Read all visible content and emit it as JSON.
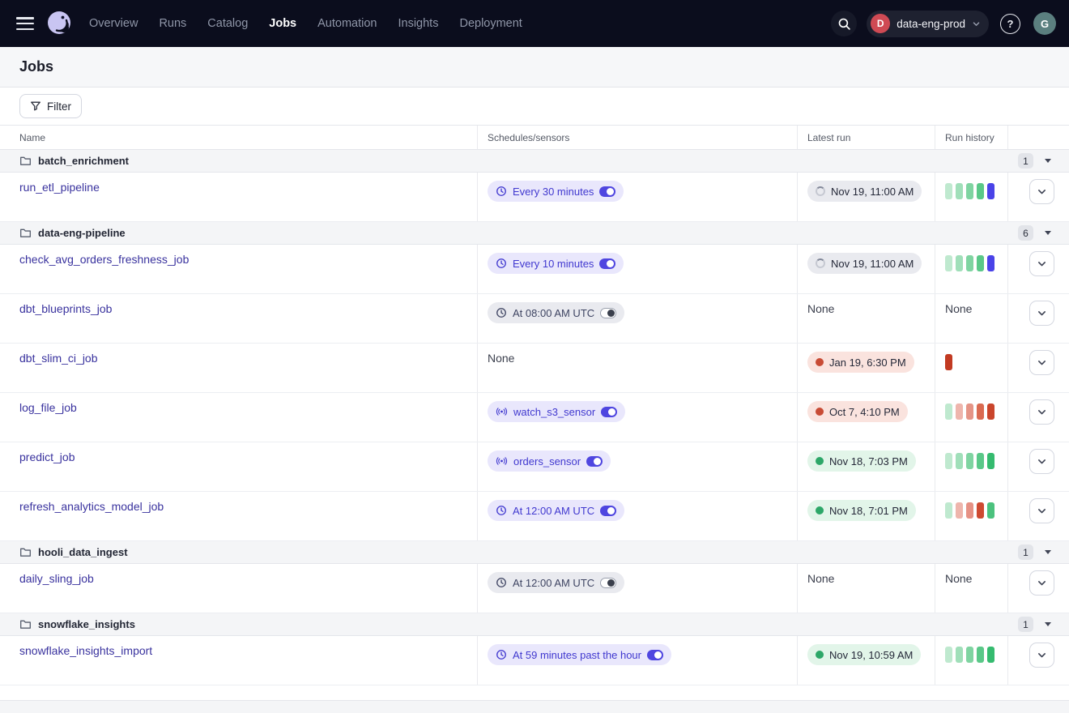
{
  "nav": {
    "items": [
      {
        "label": "Overview",
        "active": false
      },
      {
        "label": "Runs",
        "active": false
      },
      {
        "label": "Catalog",
        "active": false
      },
      {
        "label": "Jobs",
        "active": true
      },
      {
        "label": "Automation",
        "active": false
      },
      {
        "label": "Insights",
        "active": false
      },
      {
        "label": "Deployment",
        "active": false
      }
    ],
    "workspace": {
      "initial": "D",
      "label": "data-eng-prod"
    },
    "help_glyph": "?",
    "avatar_initial": "G"
  },
  "page": {
    "title": "Jobs"
  },
  "toolbar": {
    "filter_label": "Filter"
  },
  "table": {
    "columns": [
      "Name",
      "Schedules/sensors",
      "Latest run",
      "Run history",
      ""
    ],
    "none_label": "None",
    "groups": [
      {
        "name": "batch_enrichment",
        "count": "1",
        "jobs": [
          {
            "name": "run_etl_pipeline",
            "schedule": {
              "type": "schedule",
              "label": "Every 30 minutes",
              "enabled": true
            },
            "latest_run": {
              "type": "in_progress",
              "label": "Nov 19, 11:00 AM"
            },
            "run_history": {
              "type": "bars",
              "bars": [
                "#bfe9cf",
                "#a0dfb9",
                "#7fd4a1",
                "#5ac888",
                "#4a43e8"
              ]
            }
          }
        ]
      },
      {
        "name": "data-eng-pipeline",
        "count": "6",
        "jobs": [
          {
            "name": "check_avg_orders_freshness_job",
            "schedule": {
              "type": "schedule",
              "label": "Every 10 minutes",
              "enabled": true
            },
            "latest_run": {
              "type": "in_progress",
              "label": "Nov 19, 11:00 AM"
            },
            "run_history": {
              "type": "bars",
              "bars": [
                "#bfe9cf",
                "#a0dfb9",
                "#7fd4a1",
                "#5ac888",
                "#4a43e8"
              ]
            }
          },
          {
            "name": "dbt_blueprints_job",
            "schedule": {
              "type": "schedule",
              "label": "At 08:00 AM UTC",
              "enabled": false
            },
            "latest_run": {
              "type": "none"
            },
            "run_history": {
              "type": "none"
            }
          },
          {
            "name": "dbt_slim_ci_job",
            "schedule": {
              "type": "none"
            },
            "latest_run": {
              "type": "failure",
              "label": "Jan 19, 6:30 PM"
            },
            "run_history": {
              "type": "bars",
              "bars": [
                "#c23a22"
              ]
            }
          },
          {
            "name": "log_file_job",
            "schedule": {
              "type": "sensor",
              "label": "watch_s3_sensor",
              "enabled": true
            },
            "latest_run": {
              "type": "failure",
              "label": "Oct 7, 4:10 PM"
            },
            "run_history": {
              "type": "bars",
              "bars": [
                "#bfe9cf",
                "#eeb5ac",
                "#e59486",
                "#da6a51",
                "#ca452c"
              ]
            }
          },
          {
            "name": "predict_job",
            "schedule": {
              "type": "sensor",
              "label": "orders_sensor",
              "enabled": true
            },
            "latest_run": {
              "type": "success",
              "label": "Nov 18, 7:03 PM"
            },
            "run_history": {
              "type": "bars",
              "bars": [
                "#bfe9cf",
                "#a0dfb9",
                "#7fd4a1",
                "#5ac888",
                "#35bb6f"
              ]
            }
          },
          {
            "name": "refresh_analytics_model_job",
            "schedule": {
              "type": "schedule",
              "label": "At 12:00 AM UTC",
              "enabled": true
            },
            "latest_run": {
              "type": "success",
              "label": "Nov 18, 7:01 PM"
            },
            "run_history": {
              "type": "bars",
              "bars": [
                "#bfe9cf",
                "#eeb5ac",
                "#e69184",
                "#ce4a31",
                "#4cc27e"
              ]
            }
          }
        ]
      },
      {
        "name": "hooli_data_ingest",
        "count": "1",
        "jobs": [
          {
            "name": "daily_sling_job",
            "schedule": {
              "type": "schedule",
              "label": "At 12:00 AM UTC",
              "enabled": false
            },
            "latest_run": {
              "type": "none"
            },
            "run_history": {
              "type": "none"
            }
          }
        ]
      },
      {
        "name": "snowflake_insights",
        "count": "1",
        "jobs": [
          {
            "name": "snowflake_insights_import",
            "schedule": {
              "type": "schedule",
              "label": "At 59 minutes past the hour",
              "enabled": true
            },
            "latest_run": {
              "type": "success",
              "label": "Nov 19, 10:59 AM"
            },
            "run_history": {
              "type": "bars",
              "bars": [
                "#bfe9cf",
                "#a0dfb9",
                "#7fd4a1",
                "#5ac888",
                "#35bb6f"
              ]
            }
          }
        ]
      }
    ]
  },
  "colors": {
    "nav_bg": "#0b0d1d",
    "accent_indigo": "#4f46e0",
    "link_indigo": "#39329e",
    "success_green": "#2da768",
    "failure_red": "#c84b35",
    "in_progress_blue": "#4a43e8",
    "workspace_badge_red": "#cf4a54",
    "avatar_teal": "#5b7f7f"
  }
}
